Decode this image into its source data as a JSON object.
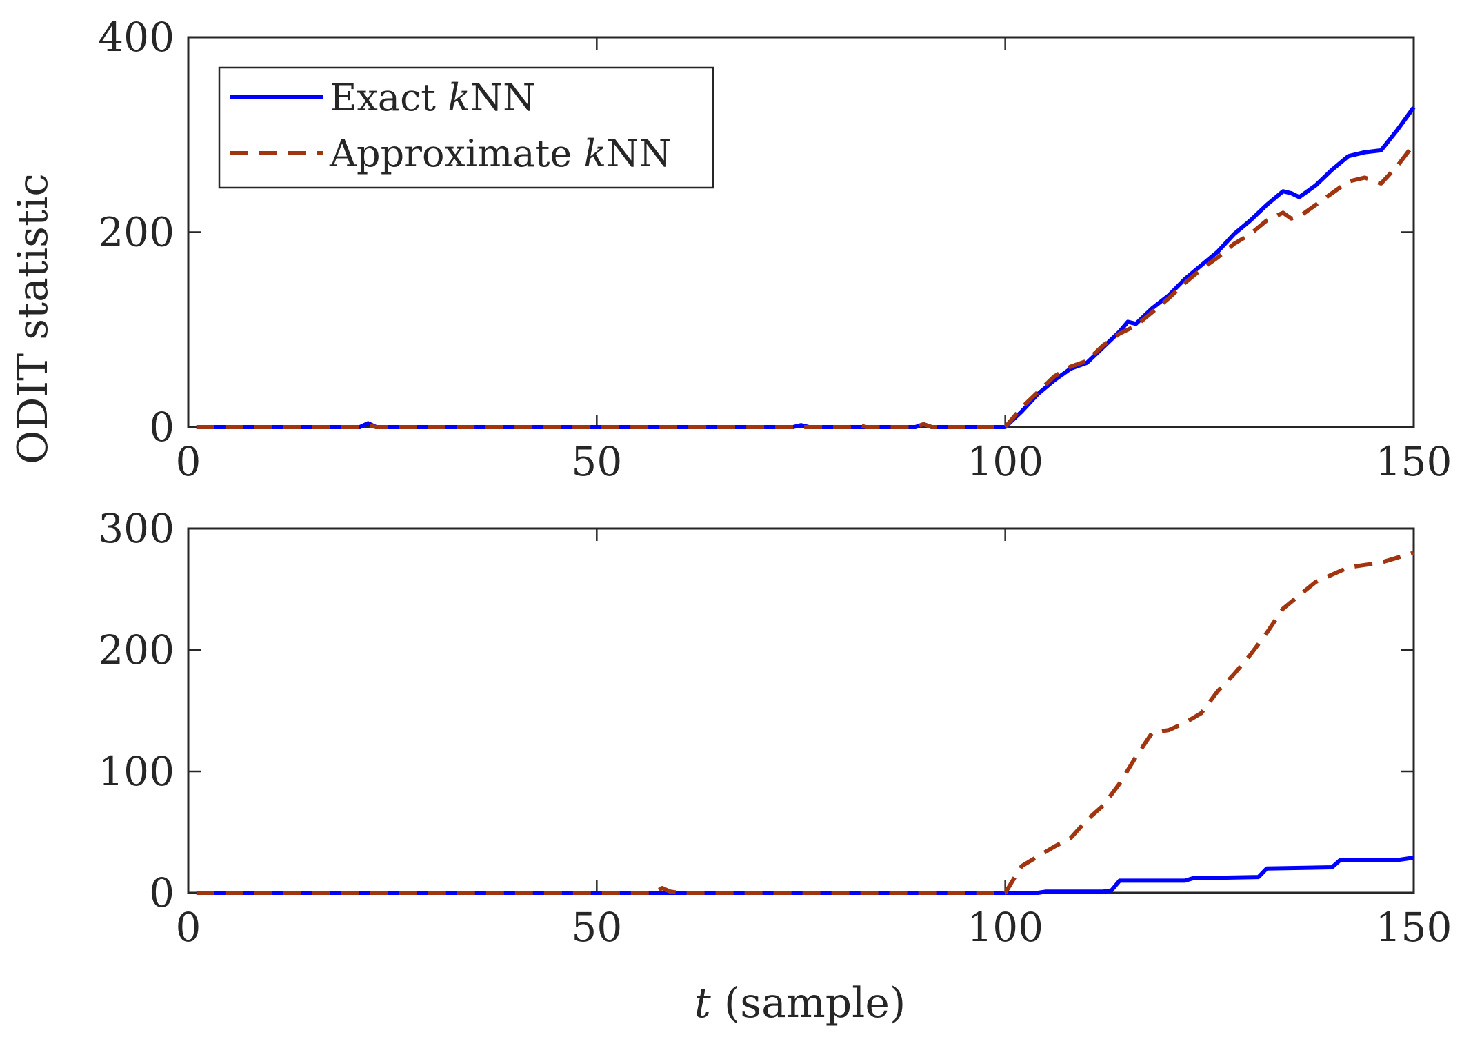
{
  "figure": {
    "ylabel": "ODIT statistic",
    "xlabel_var": "t",
    "xlabel_unit": " (sample)",
    "legend": {
      "placement": "top-left",
      "entries": [
        {
          "series": "Exact kNN",
          "pre": "Exact ",
          "italic": "k",
          "post": "NN",
          "color": "#0000ff",
          "dash": "solid"
        },
        {
          "series": "Approximate kNN",
          "pre": "Approximate ",
          "italic": "k",
          "post": "NN",
          "color": "#a0350f",
          "dash": "dashed"
        }
      ]
    }
  },
  "chart_data": [
    {
      "type": "line",
      "xlim": [
        0,
        150
      ],
      "ylim": [
        0,
        400
      ],
      "xticks": [
        0,
        50,
        100,
        150
      ],
      "yticks": [
        0,
        200,
        400
      ],
      "grid": false,
      "series": [
        {
          "name": "Exact kNN",
          "color": "#0000ff",
          "dash": "solid",
          "points": [
            [
              1,
              0
            ],
            [
              21,
              0
            ],
            [
              22,
              4
            ],
            [
              23,
              0
            ],
            [
              74,
              0
            ],
            [
              75,
              2
            ],
            [
              76,
              0
            ],
            [
              89,
              0
            ],
            [
              90,
              3
            ],
            [
              91,
              0
            ],
            [
              100,
              0
            ],
            [
              102,
              16
            ],
            [
              104,
              34
            ],
            [
              106,
              48
            ],
            [
              108,
              60
            ],
            [
              110,
              66
            ],
            [
              112,
              82
            ],
            [
              114,
              98
            ],
            [
              115,
              108
            ],
            [
              116,
              106
            ],
            [
              118,
              122
            ],
            [
              120,
              135
            ],
            [
              122,
              152
            ],
            [
              124,
              166
            ],
            [
              126,
              180
            ],
            [
              128,
              198
            ],
            [
              130,
              212
            ],
            [
              132,
              228
            ],
            [
              134,
              242
            ],
            [
              135,
              240
            ],
            [
              136,
              236
            ],
            [
              138,
              248
            ],
            [
              140,
              264
            ],
            [
              142,
              278
            ],
            [
              144,
              282
            ],
            [
              146,
              284
            ],
            [
              148,
              305
            ],
            [
              150,
              328
            ]
          ]
        },
        {
          "name": "Approximate kNN",
          "color": "#a0350f",
          "dash": "dashed",
          "points": [
            [
              1,
              0
            ],
            [
              21,
              0
            ],
            [
              22,
              2
            ],
            [
              23,
              0
            ],
            [
              81,
              0
            ],
            [
              82,
              2
            ],
            [
              83,
              0
            ],
            [
              89,
              0
            ],
            [
              90,
              3
            ],
            [
              91,
              0
            ],
            [
              100,
              0
            ],
            [
              102,
              20
            ],
            [
              104,
              36
            ],
            [
              106,
              52
            ],
            [
              108,
              62
            ],
            [
              110,
              68
            ],
            [
              112,
              84
            ],
            [
              114,
              96
            ],
            [
              116,
              104
            ],
            [
              118,
              118
            ],
            [
              120,
              132
            ],
            [
              122,
              148
            ],
            [
              124,
              162
            ],
            [
              126,
              174
            ],
            [
              128,
              188
            ],
            [
              130,
              198
            ],
            [
              132,
              212
            ],
            [
              134,
              220
            ],
            [
              135,
              214
            ],
            [
              136,
              216
            ],
            [
              138,
              228
            ],
            [
              140,
              240
            ],
            [
              142,
              252
            ],
            [
              144,
              256
            ],
            [
              146,
              250
            ],
            [
              148,
              268
            ],
            [
              150,
              290
            ]
          ]
        }
      ]
    },
    {
      "type": "line",
      "xlim": [
        0,
        150
      ],
      "ylim": [
        0,
        300
      ],
      "xticks": [
        0,
        50,
        100,
        150
      ],
      "yticks": [
        0,
        100,
        200,
        300
      ],
      "grid": false,
      "series": [
        {
          "name": "Exact kNN",
          "color": "#0000ff",
          "dash": "solid",
          "points": [
            [
              1,
              0
            ],
            [
              100,
              0
            ],
            [
              104,
              0
            ],
            [
              105,
              1
            ],
            [
              112,
              1
            ],
            [
              113,
              2
            ],
            [
              114,
              10
            ],
            [
              122,
              10
            ],
            [
              123,
              12
            ],
            [
              131,
              13
            ],
            [
              132,
              20
            ],
            [
              140,
              21
            ],
            [
              141,
              27
            ],
            [
              148,
              27
            ],
            [
              150,
              29
            ]
          ]
        },
        {
          "name": "Approximate kNN",
          "color": "#a0350f",
          "dash": "dashed",
          "points": [
            [
              1,
              0
            ],
            [
              57,
              0
            ],
            [
              58,
              4
            ],
            [
              59,
              1
            ],
            [
              60,
              0
            ],
            [
              100,
              0
            ],
            [
              102,
              22
            ],
            [
              104,
              30
            ],
            [
              106,
              38
            ],
            [
              108,
              45
            ],
            [
              110,
              60
            ],
            [
              112,
              72
            ],
            [
              114,
              90
            ],
            [
              116,
              112
            ],
            [
              118,
              132
            ],
            [
              120,
              134
            ],
            [
              122,
              140
            ],
            [
              124,
              148
            ],
            [
              126,
              166
            ],
            [
              128,
              180
            ],
            [
              130,
              196
            ],
            [
              132,
              214
            ],
            [
              134,
              234
            ],
            [
              136,
              245
            ],
            [
              138,
              256
            ],
            [
              140,
              262
            ],
            [
              142,
              268
            ],
            [
              144,
              270
            ],
            [
              146,
              272
            ],
            [
              148,
              276
            ],
            [
              150,
              280
            ]
          ]
        }
      ]
    }
  ]
}
